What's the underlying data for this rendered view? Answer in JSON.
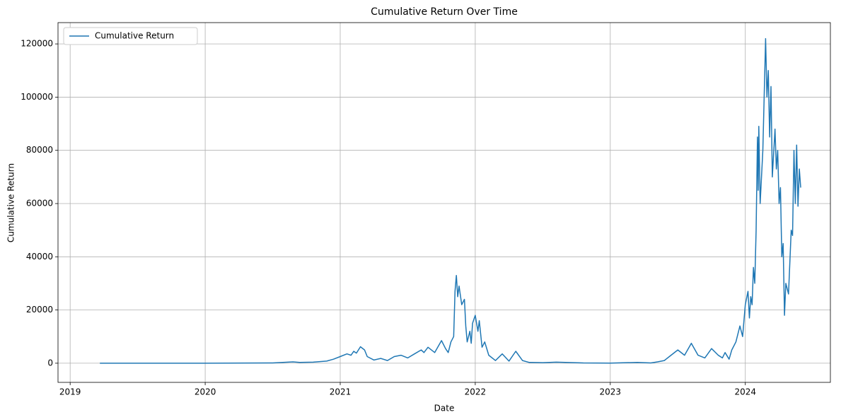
{
  "chart_data": {
    "type": "line",
    "title": "Cumulative Return Over Time",
    "xlabel": "Date",
    "ylabel": "Cumulative Return",
    "x": [
      2019.22,
      2019.5,
      2020.0,
      2020.5,
      2020.65,
      2020.7,
      2020.8,
      2020.9,
      2020.95,
      2021.0,
      2021.05,
      2021.08,
      2021.1,
      2021.12,
      2021.15,
      2021.18,
      2021.2,
      2021.25,
      2021.3,
      2021.35,
      2021.4,
      2021.45,
      2021.5,
      2021.55,
      2021.6,
      2021.62,
      2021.65,
      2021.7,
      2021.75,
      2021.78,
      2021.8,
      2021.82,
      2021.84,
      2021.85,
      2021.86,
      2021.87,
      2021.88,
      2021.9,
      2021.92,
      2021.93,
      2021.94,
      2021.96,
      2021.97,
      2021.98,
      2022.0,
      2022.02,
      2022.03,
      2022.05,
      2022.07,
      2022.1,
      2022.15,
      2022.2,
      2022.25,
      2022.3,
      2022.35,
      2022.4,
      2022.5,
      2022.6,
      2022.8,
      2023.0,
      2023.2,
      2023.3,
      2023.35,
      2023.4,
      2023.45,
      2023.5,
      2023.55,
      2023.6,
      2023.65,
      2023.7,
      2023.75,
      2023.8,
      2023.83,
      2023.85,
      2023.88,
      2023.9,
      2023.93,
      2023.96,
      2023.98,
      2024.0,
      2024.02,
      2024.03,
      2024.04,
      2024.05,
      2024.06,
      2024.07,
      2024.08,
      2024.09,
      2024.095,
      2024.1,
      2024.11,
      2024.13,
      2024.15,
      2024.16,
      2024.17,
      2024.18,
      2024.19,
      2024.2,
      2024.22,
      2024.23,
      2024.24,
      2024.25,
      2024.26,
      2024.27,
      2024.28,
      2024.29,
      2024.3,
      2024.32,
      2024.34,
      2024.35,
      2024.36,
      2024.37,
      2024.38,
      2024.39,
      2024.4,
      2024.41
    ],
    "series": [
      {
        "name": "Cumulative Return",
        "color": "#1f77b4",
        "values": [
          0,
          0,
          0,
          100,
          500,
          300,
          400,
          800,
          1500,
          2500,
          3500,
          3000,
          4500,
          3800,
          6200,
          5000,
          2500,
          1200,
          1800,
          1000,
          2500,
          3000,
          2000,
          3500,
          5000,
          4000,
          6000,
          4000,
          8500,
          5500,
          4000,
          8000,
          10000,
          27000,
          33000,
          25000,
          29000,
          22000,
          24000,
          14000,
          8000,
          12000,
          7500,
          15000,
          18000,
          12000,
          16000,
          6000,
          8000,
          3000,
          1000,
          3500,
          800,
          4500,
          1000,
          300,
          200,
          400,
          100,
          50,
          300,
          100,
          500,
          1000,
          3000,
          5000,
          3000,
          7500,
          3000,
          2000,
          5500,
          3000,
          2000,
          4000,
          1500,
          5000,
          8000,
          14000,
          10000,
          22000,
          27000,
          17000,
          25000,
          22000,
          36000,
          30000,
          50000,
          85000,
          65000,
          89000,
          60000,
          80000,
          122000,
          100000,
          110000,
          85000,
          104000,
          70000,
          88000,
          73000,
          80000,
          60000,
          66000,
          40000,
          45000,
          18000,
          30000,
          26000,
          50000,
          48000,
          80000,
          60000,
          82000,
          59000,
          73000,
          66000
        ]
      }
    ],
    "xlim": [
      2018.91,
      2024.63
    ],
    "xticks": [
      2019,
      2020,
      2021,
      2022,
      2023,
      2024
    ],
    "ylim": [
      -7200,
      128000
    ],
    "yticks": [
      0,
      20000,
      40000,
      60000,
      80000,
      100000,
      120000
    ],
    "grid": true,
    "legend": "upper left"
  }
}
